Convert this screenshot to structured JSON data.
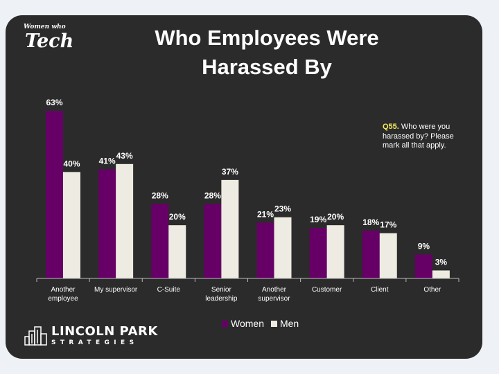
{
  "logo": {
    "line1": "Women",
    "line2": "who",
    "line3": "Tech"
  },
  "title": {
    "line1": "Who Employees Were",
    "line2": "Harassed By"
  },
  "note": {
    "label": "Q55.",
    "text": " Who were you harassed by? Please mark all that apply."
  },
  "colors": {
    "women": "#660066",
    "men": "#eeebe2",
    "background": "#2b2b2b",
    "note_label": "#f4e85c"
  },
  "chart_data": {
    "type": "bar",
    "title": "Who Employees Were Harassed By",
    "categories": [
      "Another employee",
      "My supervisor",
      "C-Suite",
      "Senior leadership",
      "Another supervisor",
      "Customer",
      "Client",
      "Other"
    ],
    "category_lines": [
      [
        "Another",
        "employee"
      ],
      [
        "My supervisor"
      ],
      [
        "C-Suite"
      ],
      [
        "Senior",
        "leadership"
      ],
      [
        "Another",
        "supervisor"
      ],
      [
        "Customer"
      ],
      [
        "Client"
      ],
      [
        "Other"
      ]
    ],
    "series": [
      {
        "name": "Women",
        "values": [
          63,
          41,
          28,
          28,
          21,
          19,
          18,
          9
        ]
      },
      {
        "name": "Men",
        "values": [
          40,
          43,
          20,
          37,
          23,
          20,
          17,
          3
        ]
      }
    ],
    "value_suffix": "%",
    "ylim": [
      0,
      63
    ],
    "legend_position": "bottom",
    "xlabel": "",
    "ylabel": ""
  },
  "legend": {
    "women": "Women",
    "men": "Men"
  },
  "brand": {
    "name": "LINCOLN PARK",
    "sub": "STRATEGIES"
  }
}
